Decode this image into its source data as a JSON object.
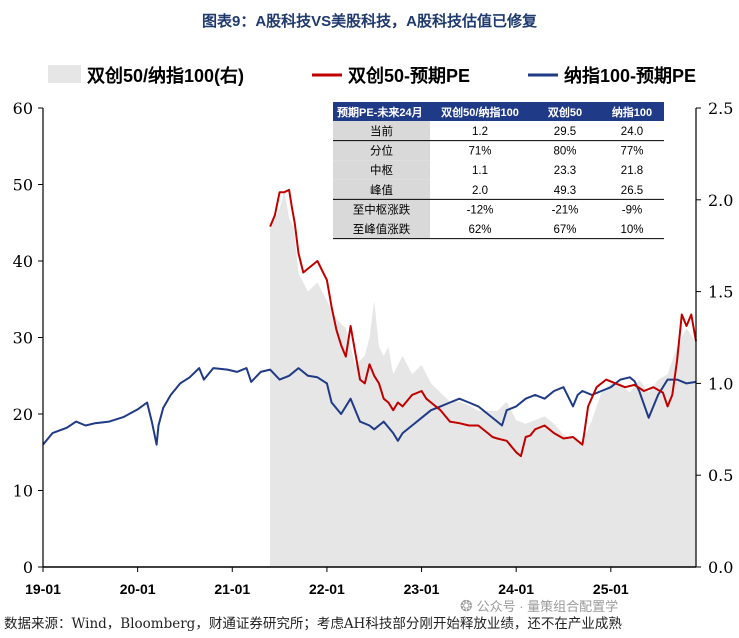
{
  "chart_data": {
    "type": "line",
    "title": "图表9：A股科技VS美股科技，A股科技估值已修复",
    "legend": [
      {
        "name": "双创50/纳指100(右)",
        "kind": "area",
        "color": "#e6e6e6"
      },
      {
        "name": "双创50-预期PE",
        "kind": "line",
        "color": "#c00000"
      },
      {
        "name": "纳指100-预期PE",
        "kind": "line",
        "color": "#1f3a86"
      }
    ],
    "x_tick_labels": [
      "19-01",
      "20-01",
      "21-01",
      "22-01",
      "23-01",
      "24-01",
      "25-01"
    ],
    "x_range": [
      2019.0,
      2025.9
    ],
    "y_left": {
      "range": [
        0,
        60
      ],
      "ticks": [
        "0",
        "10",
        "20",
        "30",
        "40",
        "50",
        "60"
      ]
    },
    "y_right": {
      "range": [
        0.0,
        2.5
      ],
      "ticks": [
        "0.0",
        "0.5",
        "1.0",
        "1.5",
        "2.0",
        "2.5"
      ]
    },
    "series": [
      {
        "name": "纳指100-预期PE",
        "axis": "left",
        "x": [
          2019.0,
          2019.1,
          2019.25,
          2019.35,
          2019.45,
          2019.55,
          2019.7,
          2019.85,
          2020.0,
          2020.1,
          2020.15,
          2020.2,
          2020.22,
          2020.27,
          2020.35,
          2020.45,
          2020.55,
          2020.65,
          2020.7,
          2020.8,
          2020.95,
          2021.05,
          2021.15,
          2021.2,
          2021.3,
          2021.4,
          2021.5,
          2021.6,
          2021.7,
          2021.8,
          2021.9,
          2022.0,
          2022.05,
          2022.15,
          2022.25,
          2022.35,
          2022.45,
          2022.5,
          2022.6,
          2022.7,
          2022.75,
          2022.8,
          2022.9,
          2023.0,
          2023.1,
          2023.2,
          2023.3,
          2023.4,
          2023.5,
          2023.6,
          2023.7,
          2023.8,
          2023.85,
          2023.9,
          2024.0,
          2024.1,
          2024.2,
          2024.3,
          2024.4,
          2024.5,
          2024.6,
          2024.65,
          2024.7,
          2024.8,
          2024.9,
          2025.0,
          2025.1,
          2025.2,
          2025.25,
          2025.3,
          2025.4,
          2025.5,
          2025.6,
          2025.7,
          2025.8,
          2025.9
        ],
        "y": [
          16.0,
          17.5,
          18.2,
          19.0,
          18.5,
          18.8,
          19.0,
          19.6,
          20.6,
          21.5,
          19.0,
          16.0,
          18.5,
          20.8,
          22.5,
          24.0,
          24.8,
          26.0,
          24.5,
          26.0,
          25.8,
          25.5,
          26.0,
          24.2,
          25.5,
          25.8,
          24.5,
          25.0,
          26.0,
          25.0,
          24.8,
          24.0,
          21.5,
          20.0,
          22.0,
          19.0,
          18.5,
          18.0,
          19.0,
          17.5,
          16.5,
          17.5,
          18.5,
          19.5,
          20.5,
          21.0,
          21.5,
          22.0,
          21.5,
          21.0,
          20.0,
          19.0,
          18.5,
          20.5,
          21.0,
          22.0,
          22.5,
          22.0,
          23.0,
          23.5,
          21.0,
          22.5,
          23.0,
          22.5,
          23.0,
          23.5,
          24.5,
          24.8,
          24.3,
          23.0,
          19.5,
          22.5,
          24.5,
          24.5,
          24.0,
          24.2
        ]
      },
      {
        "name": "双创50-预期PE",
        "axis": "left",
        "x": [
          2021.4,
          2021.45,
          2021.5,
          2021.55,
          2021.6,
          2021.63,
          2021.66,
          2021.7,
          2021.75,
          2021.8,
          2021.9,
          2022.0,
          2022.05,
          2022.1,
          2022.15,
          2022.2,
          2022.25,
          2022.3,
          2022.35,
          2022.4,
          2022.45,
          2022.5,
          2022.55,
          2022.6,
          2022.65,
          2022.7,
          2022.75,
          2022.8,
          2022.9,
          2023.0,
          2023.05,
          2023.1,
          2023.2,
          2023.3,
          2023.4,
          2023.5,
          2023.6,
          2023.7,
          2023.75,
          2023.8,
          2023.9,
          2024.0,
          2024.05,
          2024.1,
          2024.15,
          2024.2,
          2024.3,
          2024.4,
          2024.5,
          2024.6,
          2024.65,
          2024.7,
          2024.72,
          2024.76,
          2024.85,
          2024.95,
          2025.05,
          2025.15,
          2025.25,
          2025.35,
          2025.45,
          2025.55,
          2025.6,
          2025.65,
          2025.7,
          2025.75,
          2025.8,
          2025.85,
          2025.9
        ],
        "y": [
          44.5,
          46.0,
          49.0,
          49.0,
          49.3,
          47.0,
          45.0,
          41.0,
          38.5,
          39.0,
          40.0,
          37.5,
          34.0,
          31.0,
          29.0,
          27.5,
          31.5,
          28.0,
          24.5,
          24.0,
          26.5,
          25.0,
          24.0,
          22.0,
          21.5,
          20.5,
          21.5,
          21.0,
          22.5,
          23.0,
          22.0,
          21.5,
          20.5,
          19.0,
          18.8,
          18.5,
          18.5,
          17.5,
          17.0,
          16.8,
          16.5,
          15.0,
          14.5,
          17.0,
          17.2,
          18.0,
          18.5,
          17.5,
          16.8,
          17.0,
          16.5,
          16.0,
          17.5,
          21.0,
          23.5,
          24.5,
          24.0,
          23.5,
          23.8,
          23.0,
          23.5,
          22.8,
          21.0,
          22.5,
          27.0,
          33.0,
          31.5,
          33.0,
          29.5
        ]
      },
      {
        "name": "双创50/纳指100(右)",
        "axis": "right",
        "x": [
          2021.4,
          2021.5,
          2021.55,
          2021.6,
          2021.65,
          2021.7,
          2021.8,
          2021.9,
          2022.0,
          2022.1,
          2022.2,
          2022.3,
          2022.4,
          2022.45,
          2022.5,
          2022.55,
          2022.6,
          2022.65,
          2022.7,
          2022.8,
          2022.9,
          2023.0,
          2023.1,
          2023.2,
          2023.3,
          2023.4,
          2023.5,
          2023.6,
          2023.7,
          2023.8,
          2023.9,
          2024.0,
          2024.1,
          2024.2,
          2024.3,
          2024.4,
          2024.5,
          2024.6,
          2024.7,
          2024.8,
          2024.9,
          2025.0,
          2025.1,
          2025.2,
          2025.3,
          2025.4,
          2025.5,
          2025.6,
          2025.7,
          2025.8,
          2025.9
        ],
        "y": [
          1.85,
          1.95,
          2.05,
          1.9,
          1.85,
          1.6,
          1.5,
          1.55,
          1.45,
          1.35,
          1.3,
          1.1,
          1.15,
          1.25,
          1.45,
          1.2,
          1.15,
          1.2,
          1.05,
          1.15,
          1.05,
          1.1,
          1.0,
          0.95,
          0.9,
          0.9,
          0.88,
          0.85,
          0.85,
          0.85,
          0.9,
          0.8,
          0.78,
          0.8,
          0.82,
          0.78,
          0.72,
          0.7,
          0.68,
          0.8,
          0.95,
          1.0,
          1.0,
          0.95,
          1.02,
          0.95,
          1.02,
          1.05,
          1.2,
          1.3,
          1.22
        ]
      }
    ]
  },
  "table": {
    "headers": [
      "预期PE-未来24月",
      "双创50/纳指100",
      "双创50",
      "纳指100"
    ],
    "rows": [
      [
        "当前",
        "1.2",
        "29.5",
        "24.0"
      ],
      [
        "分位",
        "71%",
        "80%",
        "77%"
      ],
      [
        "中枢",
        "1.1",
        "23.3",
        "21.8"
      ],
      [
        "峰值",
        "2.0",
        "49.3",
        "26.5"
      ],
      [
        "至中枢涨跌",
        "-12%",
        "-21%",
        "-9%"
      ],
      [
        "至峰值涨跌",
        "62%",
        "67%",
        "10%"
      ]
    ]
  },
  "source_note": "数据来源：Wind，Bloomberg，财通证券研究所；考虑AH科技部分刚开始释放业绩，还不在产业成熟",
  "watermark": "公众号 · 量策组合配置学",
  "colors": {
    "title": "#1f3a6e",
    "header_bg": "#1f3a86",
    "red": "#c00000",
    "blue": "#1f3a86",
    "area": "#e6e6e6",
    "label_bg": "#d9d9d9"
  }
}
